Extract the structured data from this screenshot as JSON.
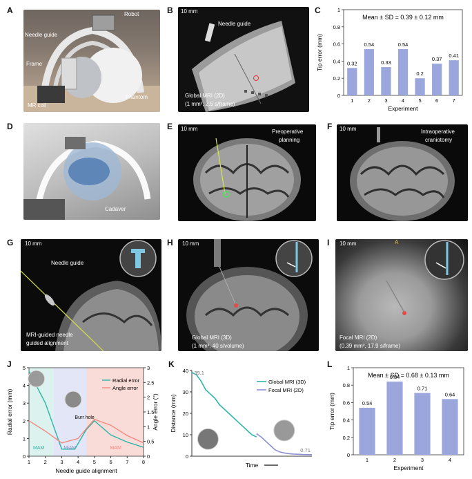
{
  "panels": {
    "A": {
      "letter": "A",
      "labels": {
        "robot": "Robot",
        "needle_guide": "Needle guide",
        "frame": "Frame",
        "phantom": "Phantom",
        "mr_coil": "MR coil"
      }
    },
    "B": {
      "letter": "B",
      "scale": "10 mm",
      "needle": "Needle guide",
      "cap1": "Global MRI (2D)",
      "cap2": "(1 mm², 2.5 s/frame)"
    },
    "C": {
      "letter": "C"
    },
    "D": {
      "letter": "D",
      "cadaver": "Cadaver"
    },
    "E": {
      "letter": "E",
      "scale": "10 mm",
      "cap1": "Preoperative",
      "cap2": "planning"
    },
    "F": {
      "letter": "F",
      "scale": "10 mm",
      "cap1": "Intraoperative",
      "cap2": "craniotomy"
    },
    "G": {
      "letter": "G",
      "scale": "10 mm",
      "needle": "Needle guide",
      "cap1": "MRI-guided needle",
      "cap2": "guided alignment"
    },
    "H": {
      "letter": "H",
      "scale": "10 mm",
      "cap1": "Global MRI (3D)",
      "cap2": "(1 mm³, 40 s/volume)"
    },
    "I": {
      "letter": "I",
      "scale": "10 mm",
      "marker": "A",
      "cap1": "Focal MRI (2D)",
      "cap2": "(0.39 mm², 17.9 s/frame)"
    },
    "J": {
      "letter": "J",
      "burr": "Burr hole",
      "mam": "MAM",
      "miam": "MiAM"
    },
    "K": {
      "letter": "K",
      "val_start": "39.1",
      "val_end": "0.71"
    },
    "L": {
      "letter": "L"
    }
  },
  "chart_data": [
    {
      "id": "C",
      "type": "bar",
      "title": "Mean ± SD = 0.39 ± 0.12 mm",
      "xlabel": "Experiment",
      "ylabel": "Tip error (mm)",
      "categories": [
        "1",
        "2",
        "3",
        "4",
        "5",
        "6",
        "7"
      ],
      "values": [
        0.32,
        0.54,
        0.33,
        0.54,
        0.2,
        0.37,
        0.41
      ],
      "labels": [
        "0.32",
        "0.54",
        "0.33",
        "0.54",
        "0.2",
        "0.37",
        "0.41"
      ],
      "ylim": [
        0,
        1
      ],
      "yticks": [
        "0",
        "0.2",
        "0.4",
        "0.6",
        "0.8",
        "1"
      ],
      "color": "#9aa6dc"
    },
    {
      "id": "L",
      "type": "bar",
      "title": "Mean ± SD = 0.68 ± 0.13 mm",
      "xlabel": "Experiment",
      "ylabel": "Tip error (mm)",
      "categories": [
        "1",
        "2",
        "3",
        "4"
      ],
      "values": [
        0.54,
        0.84,
        0.71,
        0.64
      ],
      "labels": [
        "0.54",
        "0.84",
        "0.71",
        "0.64"
      ],
      "ylim": [
        0,
        1
      ],
      "yticks": [
        "0",
        "0.2",
        "0.4",
        "0.6",
        "0.8",
        "1"
      ],
      "color": "#9aa6dc"
    },
    {
      "id": "J",
      "type": "line",
      "xlabel": "Needle guide alignment",
      "ylabel_left": "Radial error (mm)",
      "ylabel_right": "Angle error (°)",
      "x": [
        1,
        2,
        3,
        4,
        5,
        6,
        7,
        8
      ],
      "xticks": [
        "1",
        "2",
        "3",
        "4",
        "5",
        "6",
        "7",
        "8"
      ],
      "yticks_left": [
        "0",
        "1",
        "2",
        "3",
        "4",
        "5"
      ],
      "yticks_right": [
        "0",
        "0.5",
        "1",
        "1.5",
        "2",
        "2.5",
        "3"
      ],
      "series": [
        {
          "name": "Radial error",
          "axis": "left",
          "color": "#2bb5a6",
          "x": [
            1,
            2,
            3,
            3.8,
            4.5,
            5,
            6,
            7,
            8
          ],
          "values": [
            4.8,
            3.0,
            0.4,
            0.4,
            1.5,
            2.0,
            1.2,
            0.8,
            0.5
          ]
        },
        {
          "name": "Angle error",
          "axis": "right",
          "color": "#f08a80",
          "x": [
            1,
            2,
            3,
            4,
            4.6,
            5,
            6,
            7,
            8
          ],
          "values": [
            1.2,
            0.85,
            0.45,
            0.6,
            1.0,
            1.25,
            1.05,
            0.7,
            0.45
          ]
        }
      ],
      "regions": [
        {
          "from": 1,
          "to": 2.5,
          "color": "#dcf2ee"
        },
        {
          "from": 2.5,
          "to": 4.5,
          "color": "#e3e6f7"
        },
        {
          "from": 4.5,
          "to": 8,
          "color": "#f9dbd8"
        }
      ]
    },
    {
      "id": "K",
      "type": "line",
      "xlabel": "Time",
      "ylabel": "Distance (mm)",
      "yticks": [
        "0",
        "10",
        "20",
        "30",
        "40"
      ],
      "ylim": [
        0,
        40
      ],
      "series": [
        {
          "name": "Global MRI (3D)",
          "color": "#2bb5a6",
          "x": [
            0,
            1,
            2,
            3,
            4,
            5,
            6,
            7,
            8,
            9,
            10,
            11,
            12,
            13,
            14
          ],
          "values": [
            39.1,
            38,
            35,
            31,
            29,
            27,
            24,
            22,
            20,
            18,
            16,
            14,
            12,
            10,
            9
          ]
        },
        {
          "name": "Focal MRI (2D)",
          "color": "#8a8fd2",
          "x": [
            14,
            15,
            16,
            17,
            18,
            19,
            20,
            21,
            22,
            23,
            24,
            25,
            26
          ],
          "values": [
            10.5,
            9,
            7,
            5,
            3,
            2,
            1.5,
            1.2,
            1,
            0.9,
            0.8,
            0.75,
            0.71
          ]
        }
      ]
    }
  ]
}
